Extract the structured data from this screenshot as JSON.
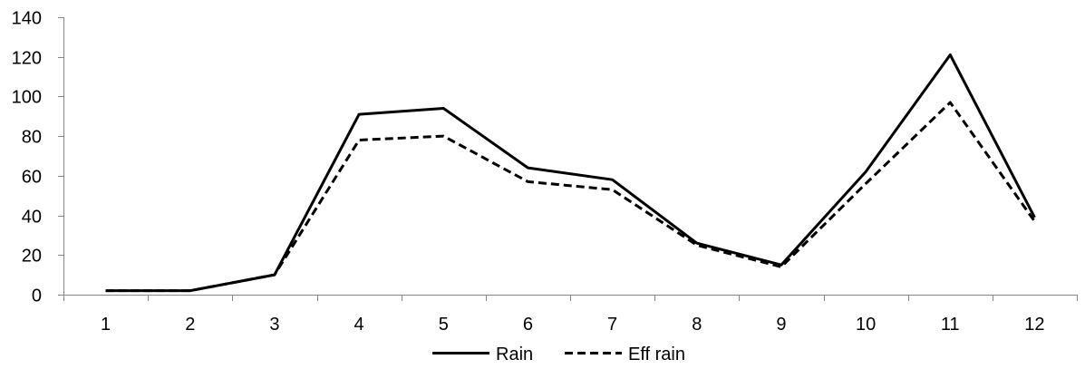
{
  "chart_data": {
    "type": "line",
    "title": "",
    "xlabel": "",
    "ylabel": "",
    "categories": [
      "1",
      "2",
      "3",
      "4",
      "5",
      "6",
      "7",
      "8",
      "9",
      "10",
      "11",
      "12"
    ],
    "ylim": [
      0,
      140
    ],
    "yticks": [
      "0",
      "20",
      "40",
      "60",
      "80",
      "100",
      "120",
      "140"
    ],
    "grid": false,
    "legend_position": "bottom",
    "series": [
      {
        "name": "Rain",
        "style": "solid",
        "color": "#000000",
        "values": [
          2,
          2,
          10,
          91,
          94,
          64,
          58,
          26,
          15,
          62,
          121,
          39
        ]
      },
      {
        "name": "Eff rain",
        "style": "dashed",
        "color": "#000000",
        "values": [
          2,
          2,
          10,
          78,
          80,
          57,
          53,
          25,
          14,
          56,
          97,
          37
        ]
      }
    ]
  }
}
